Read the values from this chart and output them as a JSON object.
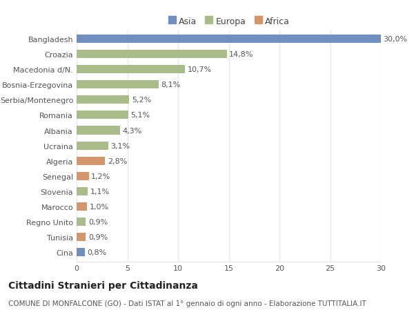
{
  "categories": [
    "Bangladesh",
    "Croazia",
    "Macedonia d/N.",
    "Bosnia-Erzegovina",
    "Serbia/Montenegro",
    "Romania",
    "Albania",
    "Ucraina",
    "Algeria",
    "Senegal",
    "Slovenia",
    "Marocco",
    "Regno Unito",
    "Tunisia",
    "Cina"
  ],
  "values": [
    30.0,
    14.8,
    10.7,
    8.1,
    5.2,
    5.1,
    4.3,
    3.1,
    2.8,
    1.2,
    1.1,
    1.0,
    0.9,
    0.9,
    0.8
  ],
  "labels": [
    "30,0%",
    "14,8%",
    "10,7%",
    "8,1%",
    "5,2%",
    "5,1%",
    "4,3%",
    "3,1%",
    "2,8%",
    "1,2%",
    "1,1%",
    "1,0%",
    "0,9%",
    "0,9%",
    "0,8%"
  ],
  "colors": [
    "#6f8fc0",
    "#a8bc8a",
    "#a8bc8a",
    "#a8bc8a",
    "#a8bc8a",
    "#a8bc8a",
    "#a8bc8a",
    "#a8bc8a",
    "#d4956a",
    "#d4956a",
    "#a8bc8a",
    "#d4956a",
    "#a8bc8a",
    "#d4956a",
    "#6f8fc0"
  ],
  "legend_labels": [
    "Asia",
    "Europa",
    "Africa"
  ],
  "legend_colors": [
    "#6f8fc0",
    "#a8bc8a",
    "#d4956a"
  ],
  "title": "Cittadini Stranieri per Cittadinanza",
  "subtitle": "COMUNE DI MONFALCONE (GO) - Dati ISTAT al 1° gennaio di ogni anno - Elaborazione TUTTITALIA.IT",
  "xlim": [
    0,
    30
  ],
  "xticks": [
    0,
    5,
    10,
    15,
    20,
    25,
    30
  ],
  "background_color": "#ffffff",
  "grid_color": "#e8e8e8",
  "bar_height": 0.55,
  "label_fontsize": 8.0,
  "tick_fontsize": 8.0,
  "label_color": "#555555",
  "title_fontsize": 10.0,
  "subtitle_fontsize": 7.5
}
